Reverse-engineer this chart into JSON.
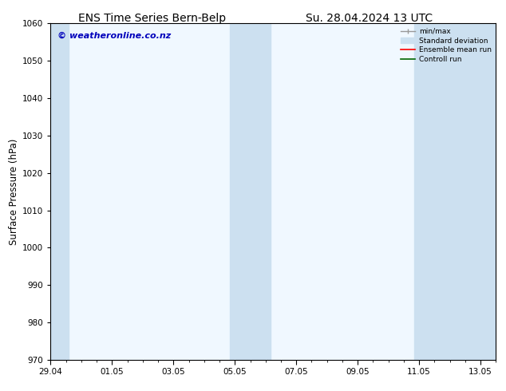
{
  "title_left": "ENS Time Series Bern-Belp",
  "title_right": "Su. 28.04.2024 13 UTC",
  "ylabel": "Surface Pressure (hPa)",
  "ylim": [
    970,
    1060
  ],
  "yticks": [
    970,
    980,
    990,
    1000,
    1010,
    1020,
    1030,
    1040,
    1050,
    1060
  ],
  "xtick_labels": [
    "29.04",
    "01.05",
    "03.05",
    "05.05",
    "07.05",
    "09.05",
    "11.05",
    "13.05"
  ],
  "xtick_positions": [
    0,
    2,
    4,
    6,
    8,
    10,
    12,
    14
  ],
  "xlim": [
    0,
    14.5
  ],
  "shaded_bands": [
    {
      "x_start": -0.1,
      "x_end": 0.6,
      "color": "#cce0f0"
    },
    {
      "x_start": 5.85,
      "x_end": 7.15,
      "color": "#cce0f0"
    },
    {
      "x_start": 11.85,
      "x_end": 14.6,
      "color": "#cce0f0"
    }
  ],
  "plot_bg_color": "#f0f8ff",
  "fig_bg_color": "#ffffff",
  "watermark_text": "© weatheronline.co.nz",
  "watermark_color": "#0000bb",
  "legend_items": [
    {
      "label": "min/max",
      "color": "#999999"
    },
    {
      "label": "Standard deviation",
      "color": "#cce0f0"
    },
    {
      "label": "Ensemble mean run",
      "color": "#ff0000"
    },
    {
      "label": "Controll run",
      "color": "#006600"
    }
  ],
  "title_fontsize": 10,
  "tick_fontsize": 7.5,
  "ylabel_fontsize": 8.5,
  "watermark_fontsize": 8
}
